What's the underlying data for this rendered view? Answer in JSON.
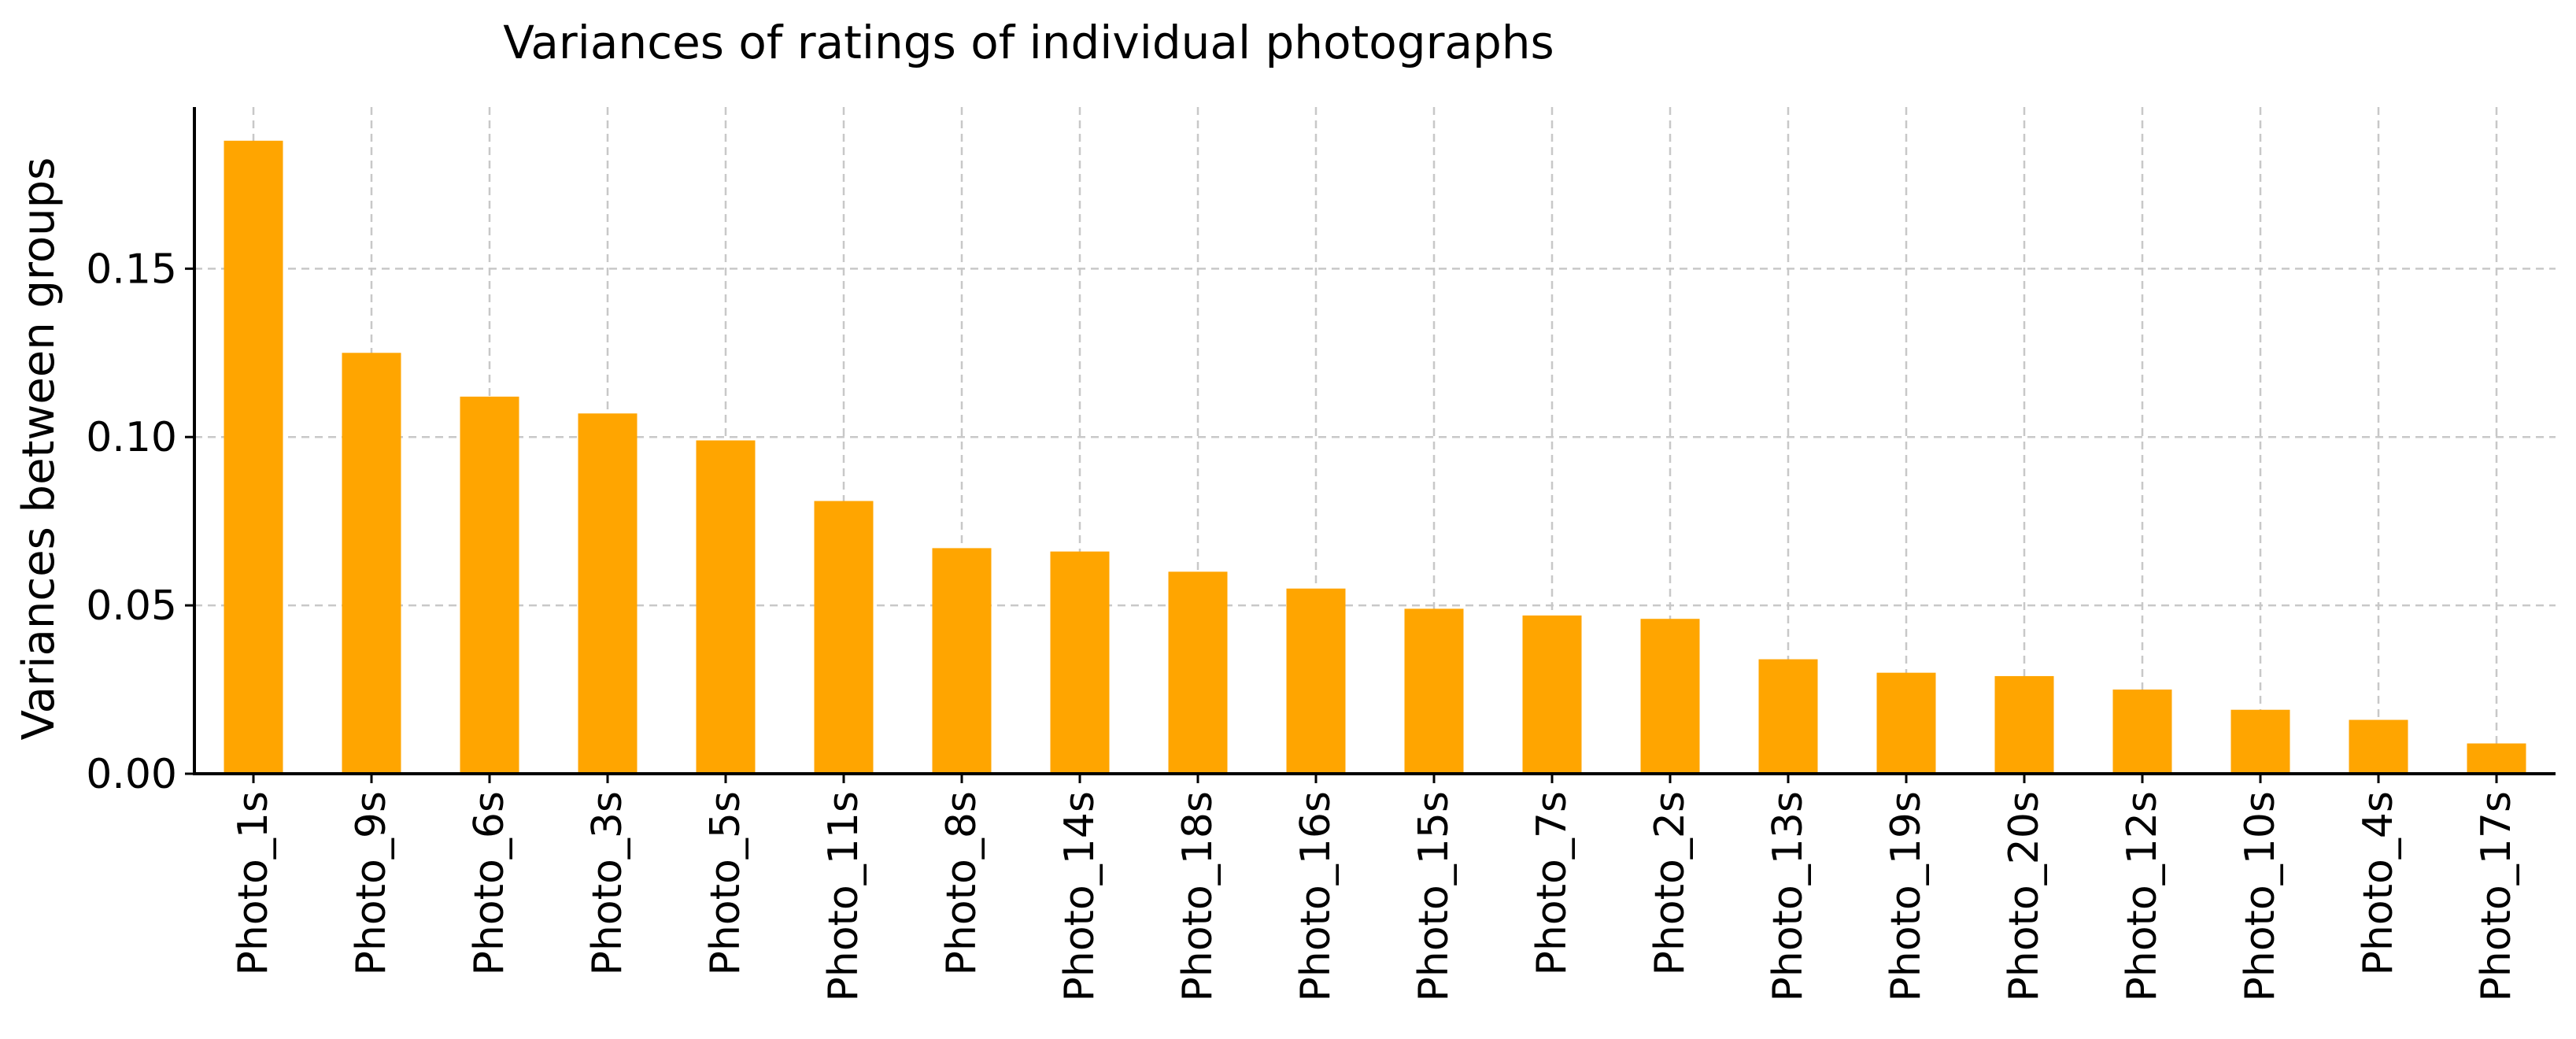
{
  "chart_data": {
    "type": "bar",
    "title": "Variances of ratings of individual photographs",
    "xlabel": "",
    "ylabel": "Variances between groups",
    "categories": [
      "Photo_1s",
      "Photo_9s",
      "Photo_6s",
      "Photo_3s",
      "Photo_5s",
      "Photo_11s",
      "Photo_8s",
      "Photo_14s",
      "Photo_18s",
      "Photo_16s",
      "Photo_15s",
      "Photo_7s",
      "Photo_2s",
      "Photo_13s",
      "Photo_19s",
      "Photo_20s",
      "Photo_12s",
      "Photo_10s",
      "Photo_4s",
      "Photo_17s"
    ],
    "values": [
      0.188,
      0.125,
      0.112,
      0.107,
      0.099,
      0.081,
      0.067,
      0.066,
      0.06,
      0.055,
      0.049,
      0.047,
      0.046,
      0.034,
      0.03,
      0.029,
      0.025,
      0.019,
      0.016,
      0.009
    ],
    "ylim": [
      0,
      0.198
    ],
    "yticks": [
      0.0,
      0.05,
      0.1,
      0.15
    ],
    "ytick_labels": [
      "0.00",
      "0.05",
      "0.10",
      "0.15"
    ],
    "grid": true,
    "bar_color": "#ffa500"
  }
}
